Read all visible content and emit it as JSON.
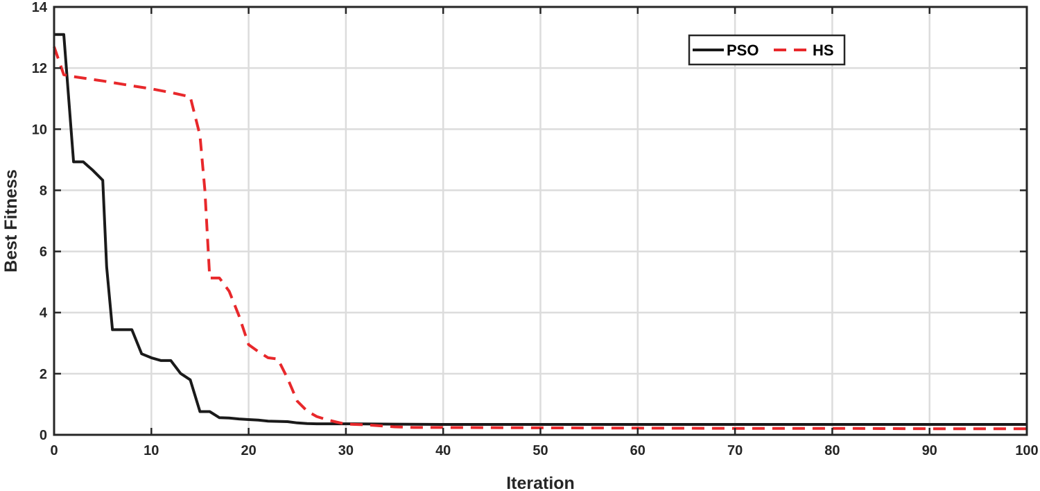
{
  "chart_data": {
    "type": "line",
    "title": "",
    "xlabel": "Iteration",
    "ylabel": "Best Fitness",
    "xlim": [
      0,
      100
    ],
    "ylim": [
      0,
      14
    ],
    "xticks": [
      0,
      10,
      20,
      30,
      40,
      50,
      60,
      70,
      80,
      90,
      100
    ],
    "yticks": [
      0,
      2,
      4,
      6,
      8,
      10,
      12,
      14
    ],
    "grid": true,
    "legend_position": "top-right",
    "series": [
      {
        "name": "PSO",
        "color": "#1a1a1a",
        "style": "solid",
        "x": [
          0,
          1,
          2,
          3,
          4,
          5,
          5.4,
          6,
          7,
          8,
          9,
          10,
          11,
          12,
          13,
          14,
          15,
          16,
          17,
          18,
          19,
          20,
          21,
          22,
          23,
          24,
          25,
          26,
          27,
          28,
          30,
          35,
          40,
          50,
          60,
          70,
          80,
          90,
          100
        ],
        "y": [
          13.1,
          13.1,
          8.93,
          8.93,
          8.65,
          8.33,
          5.5,
          3.44,
          3.44,
          3.44,
          2.65,
          2.52,
          2.43,
          2.43,
          2.01,
          1.8,
          0.76,
          0.76,
          0.56,
          0.55,
          0.52,
          0.5,
          0.48,
          0.45,
          0.44,
          0.43,
          0.39,
          0.37,
          0.36,
          0.36,
          0.36,
          0.35,
          0.34,
          0.34,
          0.34,
          0.34,
          0.34,
          0.34,
          0.34
        ]
      },
      {
        "name": "HS",
        "color": "#e8282b",
        "style": "dashed",
        "x": [
          0,
          1,
          2,
          5,
          8,
          10,
          12,
          14,
          15,
          15.5,
          16,
          17,
          18,
          19,
          20,
          21,
          22,
          23,
          24,
          25,
          26,
          27,
          28,
          29,
          30,
          32,
          35,
          37,
          40,
          50,
          60,
          70,
          80,
          90,
          100
        ],
        "y": [
          12.7,
          11.78,
          11.72,
          11.58,
          11.42,
          11.32,
          11.2,
          11.06,
          9.8,
          8.0,
          5.13,
          5.13,
          4.7,
          3.9,
          2.95,
          2.72,
          2.52,
          2.48,
          1.85,
          1.1,
          0.78,
          0.6,
          0.5,
          0.42,
          0.35,
          0.33,
          0.26,
          0.24,
          0.24,
          0.23,
          0.22,
          0.21,
          0.21,
          0.2,
          0.2
        ]
      }
    ]
  }
}
